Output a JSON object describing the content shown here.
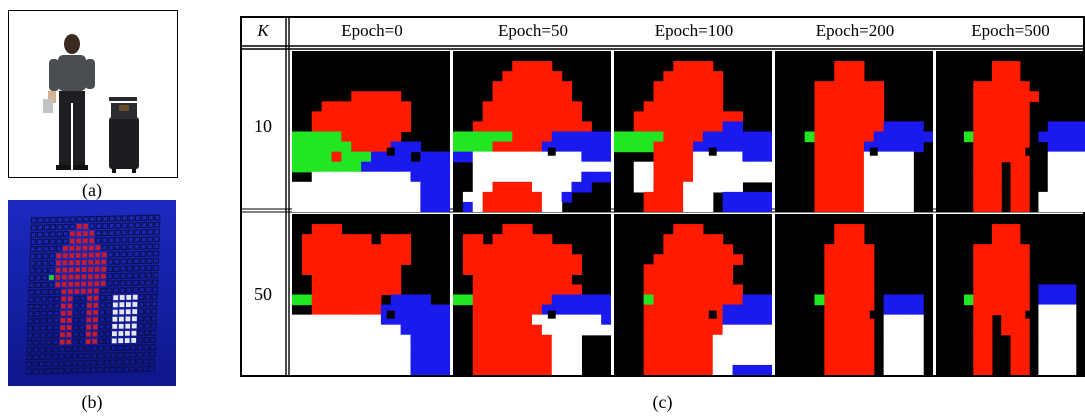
{
  "panel_a": {
    "caption": "(a)"
  },
  "panel_b": {
    "caption": "(b)"
  },
  "panel_c": {
    "caption": "(c)",
    "corner_header": "K",
    "epochs": [
      "Epoch=0",
      "Epoch=50",
      "Epoch=100",
      "Epoch=200",
      "Epoch=500"
    ],
    "k_values": [
      "10",
      "50"
    ]
  },
  "colors": {
    "background": "#000000",
    "person": "#ff1a00",
    "hand": "#22e622",
    "suitcase": "#ffffff",
    "handle": "#1a1aee",
    "render_bg": "#1a2bbf"
  }
}
